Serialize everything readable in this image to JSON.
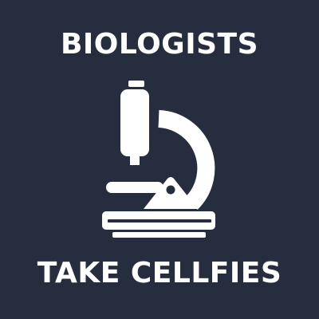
{
  "poster": {
    "headline_top": "BIOLOGISTS",
    "headline_bottom": "TAKE CELLFIES",
    "icon": "microscope-icon",
    "colors": {
      "background": "#262d3e",
      "foreground": "#ffffff"
    }
  }
}
